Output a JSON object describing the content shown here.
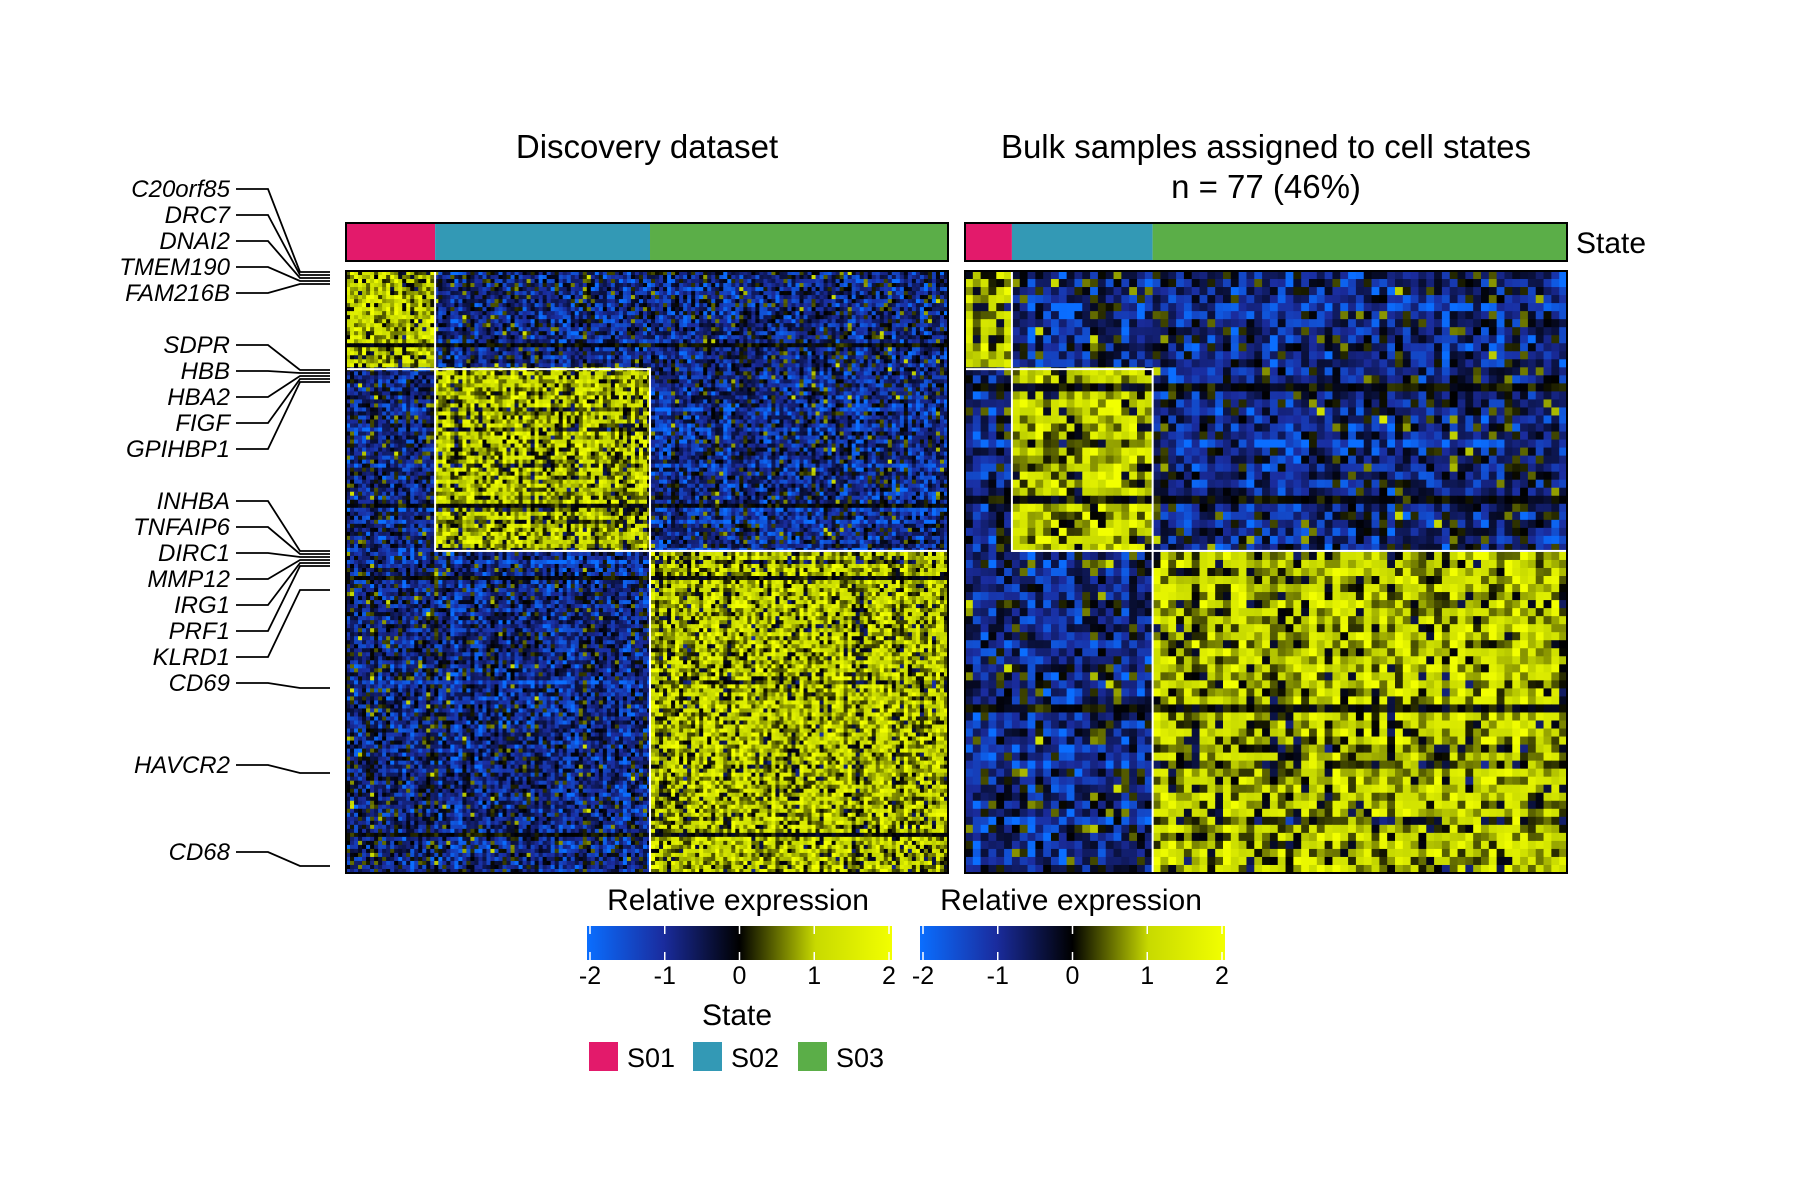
{
  "panels": {
    "left_title": "Discovery dataset",
    "right_title_line1": "Bulk samples assigned to cell states",
    "right_title_line2": "n = 77 (46%)",
    "annotation_label": "State"
  },
  "colors": {
    "S01": "#E31A6B",
    "S02": "#3399B5",
    "S03": "#5BAE48",
    "low": "#0A6EFF",
    "mid_low": "#1A2C9E",
    "zero": "#000000",
    "high": "#F2FF00"
  },
  "gene_labels": [
    "C20orf85",
    "DRC7",
    "DNAI2",
    "TMEM190",
    "FAM216B",
    "SDPR",
    "HBB",
    "HBA2",
    "FIGF",
    "GPIHBP1",
    "INHBA",
    "TNFAIP6",
    "DIRC1",
    "MMP12",
    "IRG1",
    "PRF1",
    "KLRD1",
    "CD69",
    "HAVCR2",
    "CD68"
  ],
  "legends": {
    "expr_title_left": "Relative expression",
    "expr_title_right": "Relative expression",
    "ticks": [
      "-2",
      "-1",
      "0",
      "1",
      "2"
    ],
    "state_title": "State",
    "states": [
      "S01",
      "S02",
      "S03"
    ]
  },
  "chart_data": [
    {
      "type": "heatmap",
      "title": "Discovery dataset",
      "column_annotation": "State",
      "column_groups": [
        {
          "state": "S01",
          "fraction": 0.148
        },
        {
          "state": "S02",
          "fraction": 0.357
        },
        {
          "state": "S03",
          "fraction": 0.495
        }
      ],
      "row_groups": [
        {
          "state": "S01",
          "fraction": 0.163
        },
        {
          "state": "S02",
          "fraction": 0.302
        },
        {
          "state": "S03",
          "fraction": 0.535
        }
      ],
      "value_range": [
        -2,
        2
      ],
      "colorbar_label": "Relative expression"
    },
    {
      "type": "heatmap",
      "title": "Bulk samples assigned to cell states",
      "subtitle": "n = 77 (46%)",
      "n_samples": 77,
      "column_groups": [
        {
          "state": "S01",
          "n": 6
        },
        {
          "state": "S02",
          "n": 18
        },
        {
          "state": "S03",
          "n": 53
        }
      ],
      "row_groups": [
        {
          "state": "S01",
          "fraction": 0.163
        },
        {
          "state": "S02",
          "fraction": 0.302
        },
        {
          "state": "S03",
          "fraction": 0.535
        }
      ],
      "value_range": [
        -2,
        2
      ],
      "colorbar_label": "Relative expression"
    }
  ]
}
